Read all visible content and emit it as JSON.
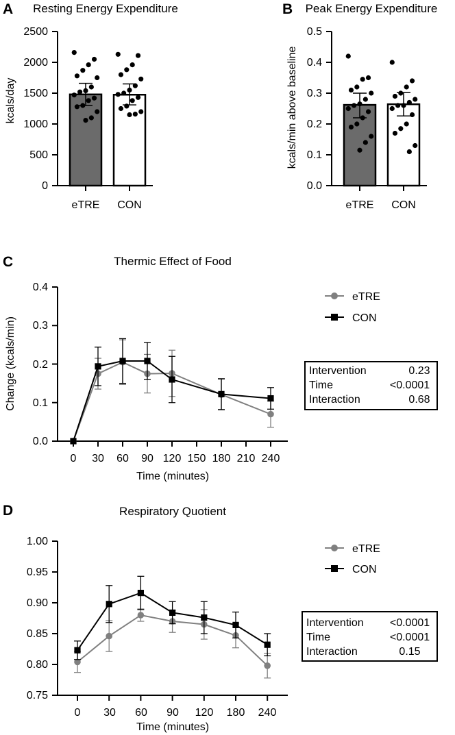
{
  "colors": {
    "etre": "#808080",
    "etre_bar": "#6b6b6b",
    "con": "#000000",
    "axis": "#000000"
  },
  "chart_data": [
    {
      "panel": "A",
      "type": "bar",
      "title": "Resting Energy Expenditure",
      "xlabel": "",
      "ylabel": "kcals/day",
      "ylim": [
        0,
        2500
      ],
      "yticks": [
        0,
        500,
        1000,
        1500,
        2000,
        2500
      ],
      "categories": [
        "eTRE",
        "CON"
      ],
      "values": [
        1480,
        1475
      ],
      "error": [
        [
          1300,
          1660
        ],
        [
          1310,
          1650
        ]
      ],
      "points": [
        [
          2160,
          2050,
          1960,
          1870,
          1780,
          1750,
          1600,
          1540,
          1520,
          1470,
          1420,
          1380,
          1300,
          1280,
          1200,
          1100,
          1060
        ],
        [
          2130,
          2110,
          1960,
          1880,
          1800,
          1730,
          1620,
          1550,
          1500,
          1480,
          1430,
          1380,
          1290,
          1250,
          1200,
          1160,
          1150
        ]
      ]
    },
    {
      "panel": "B",
      "type": "bar",
      "title": "Peak Energy Expenditure",
      "xlabel": "",
      "ylabel": "kcals/min above baseline",
      "ylim": [
        0,
        0.5
      ],
      "yticks": [
        "0.0",
        "0.1",
        "0.2",
        "0.3",
        "0.4",
        "0.5"
      ],
      "categories": [
        "eTRE",
        "CON"
      ],
      "values": [
        0.262,
        0.264
      ],
      "error": [
        [
          0.22,
          0.3
        ],
        [
          0.226,
          0.302
        ]
      ],
      "points": [
        [
          0.42,
          0.35,
          0.345,
          0.32,
          0.31,
          0.3,
          0.28,
          0.265,
          0.26,
          0.25,
          0.24,
          0.22,
          0.2,
          0.19,
          0.16,
          0.14,
          0.115
        ],
        [
          0.4,
          0.34,
          0.32,
          0.3,
          0.29,
          0.28,
          0.27,
          0.26,
          0.26,
          0.25,
          0.23,
          0.2,
          0.185,
          0.17,
          0.13,
          0.11
        ]
      ]
    },
    {
      "panel": "C",
      "type": "line",
      "title": "Thermic Effect of Food",
      "xlabel": "Time (minutes)",
      "ylabel": "Change (kcals/min)",
      "xlim": [
        -15,
        255
      ],
      "xticks": [
        0,
        30,
        60,
        90,
        120,
        150,
        180,
        210,
        240
      ],
      "ylim": [
        0,
        0.4
      ],
      "yticks": [
        "0.0",
        "0.1",
        "0.2",
        "0.3",
        "0.4"
      ],
      "x": [
        0,
        30,
        60,
        90,
        120,
        180,
        240
      ],
      "series": [
        {
          "name": "eTRE",
          "marker": "circle",
          "values": [
            0.0,
            0.175,
            0.205,
            0.175,
            0.176,
            0.121,
            0.07
          ],
          "errors": [
            0.0,
            0.04,
            0.058,
            0.05,
            0.06,
            0.04,
            0.034
          ]
        },
        {
          "name": "CON",
          "marker": "square",
          "values": [
            0.0,
            0.194,
            0.208,
            0.208,
            0.16,
            0.122,
            0.111
          ],
          "errors": [
            0.0,
            0.05,
            0.058,
            0.048,
            0.06,
            0.04,
            0.028
          ]
        }
      ],
      "stats": [
        {
          "label": "Intervention",
          "value": "0.23"
        },
        {
          "label": "Time",
          "value": "<0.0001"
        },
        {
          "label": "Interaction",
          "value": "0.68"
        }
      ]
    },
    {
      "panel": "D",
      "type": "line",
      "title": "Respiratory Quotient",
      "xlabel": "Time (minutes)",
      "ylabel": "",
      "xlim": [
        0,
        6
      ],
      "xticks": [
        "0",
        "30",
        "60",
        "90",
        "120",
        "180",
        "240"
      ],
      "ylim": [
        0.75,
        1.0
      ],
      "yticks": [
        "0.75",
        "0.80",
        "0.85",
        "0.90",
        "0.95",
        "1.00"
      ],
      "series": [
        {
          "name": "eTRE",
          "marker": "circle",
          "values": [
            0.804,
            0.846,
            0.88,
            0.87,
            0.865,
            0.847,
            0.798
          ],
          "errors": [
            0.017,
            0.025,
            0.01,
            0.018,
            0.024,
            0.02,
            0.02
          ]
        },
        {
          "name": "CON",
          "marker": "square",
          "values": [
            0.823,
            0.898,
            0.916,
            0.884,
            0.876,
            0.864,
            0.832
          ],
          "errors": [
            0.015,
            0.03,
            0.027,
            0.018,
            0.026,
            0.021,
            0.018
          ]
        }
      ],
      "stats": [
        {
          "label": "Intervention",
          "value": "<0.0001"
        },
        {
          "label": "Time",
          "value": "<0.0001"
        },
        {
          "label": "Interaction",
          "value": "0.15"
        }
      ]
    }
  ]
}
